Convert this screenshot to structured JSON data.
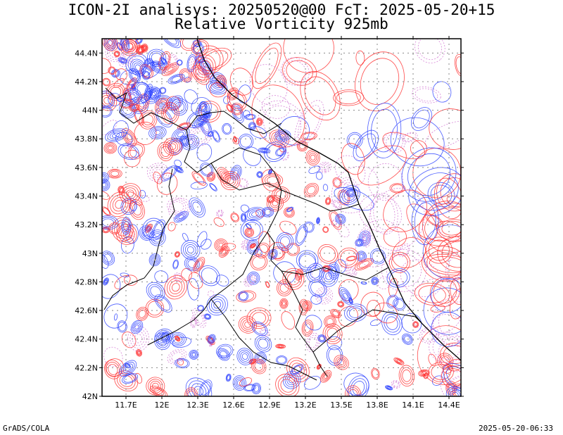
{
  "title": {
    "line1": "ICON-2I analisys: 20250520@00 FcT: 2025-05-20+15",
    "line2": "Relative Vorticity 925mb"
  },
  "footer": {
    "left": "GrADS/COLA",
    "right": "2025-05-20-06:33"
  },
  "map": {
    "lon_range": [
      11.5,
      14.5
    ],
    "lat_range": [
      42.0,
      44.5
    ],
    "lat_ticks": [
      "44.4N",
      "44.2N",
      "44N",
      "43.8N",
      "43.6N",
      "43.4N",
      "43.2N",
      "43N",
      "42.8N",
      "42.6N",
      "42.4N",
      "42.2N",
      "42N"
    ],
    "lon_ticks": [
      "11.7E",
      "12E",
      "12.3E",
      "12.6E",
      "12.9E",
      "13.2E",
      "13.5E",
      "13.8E",
      "14.1E",
      "14.4E"
    ],
    "grid": "dotted",
    "colors": {
      "positive": "#ff2a2a",
      "negative": "#2a3fff",
      "weak": "#d070d0",
      "border": "#000000"
    }
  }
}
